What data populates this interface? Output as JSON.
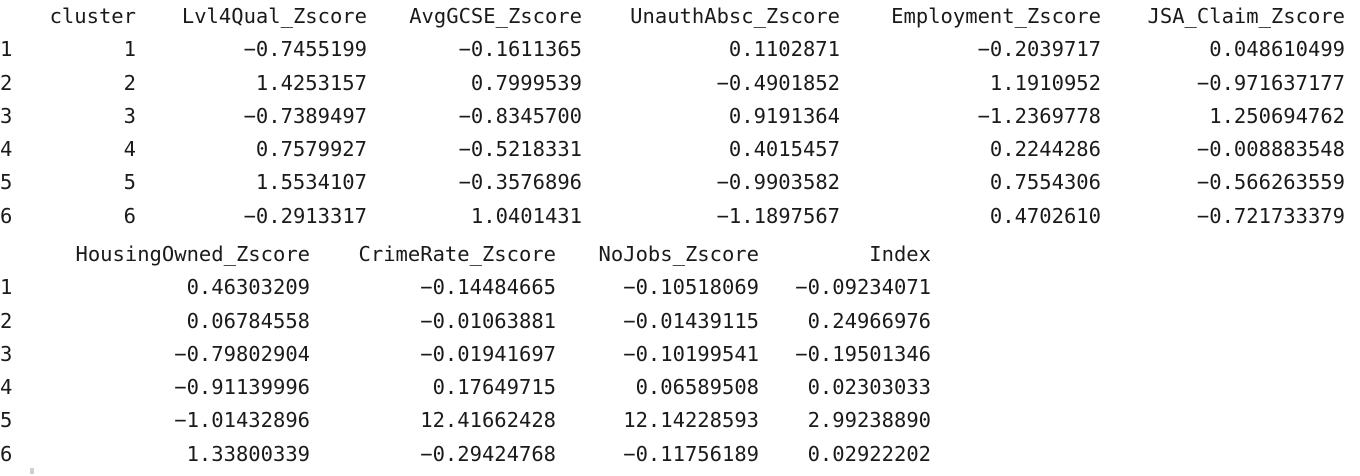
{
  "block1": {
    "headers": [
      "",
      "cluster",
      "Lvl4Qual_Zscore",
      "AvgGCSE_Zscore",
      "UnauthAbsc_Zscore",
      "Employment_Zscore",
      "JSA_Claim_Zscore"
    ],
    "rows": [
      [
        "1",
        "1",
        "-0.7455199",
        "-0.1611365",
        "0.1102871",
        "-0.2039717",
        "0.048610499"
      ],
      [
        "2",
        "2",
        "1.4253157",
        "0.7999539",
        "-0.4901852",
        "1.1910952",
        "-0.971637177"
      ],
      [
        "3",
        "3",
        "-0.7389497",
        "-0.8345700",
        "0.9191364",
        "-1.2369778",
        "1.250694762"
      ],
      [
        "4",
        "4",
        "0.7579927",
        "-0.5218331",
        "0.4015457",
        "0.2244286",
        "-0.008883548"
      ],
      [
        "5",
        "5",
        "1.5534107",
        "-0.3576896",
        "-0.9903582",
        "0.7554306",
        "-0.566263559"
      ],
      [
        "6",
        "6",
        "-0.2913317",
        "1.0401431",
        "-1.1897567",
        "0.4702610",
        "-0.721733379"
      ]
    ]
  },
  "block2": {
    "headers": [
      "",
      "HousingOwned_Zscore",
      "CrimeRate_Zscore",
      "NoJobs_Zscore",
      "Index"
    ],
    "rows": [
      [
        "1",
        "0.46303209",
        "-0.14484665",
        "-0.10518069",
        "-0.09234071"
      ],
      [
        "2",
        "0.06784558",
        "-0.01063881",
        "-0.01439115",
        "0.24966976"
      ],
      [
        "3",
        "-0.79802904",
        "-0.01941697",
        "-0.10199541",
        "-0.19501346"
      ],
      [
        "4",
        "-0.91139996",
        "0.17649715",
        "0.06589508",
        "0.02303033"
      ],
      [
        "5",
        "-1.01432896",
        "12.41662428",
        "12.14228593",
        "2.99238890"
      ],
      [
        "6",
        "1.33800339",
        "-0.29424768",
        "-0.11756189",
        "0.02922202"
      ]
    ]
  }
}
